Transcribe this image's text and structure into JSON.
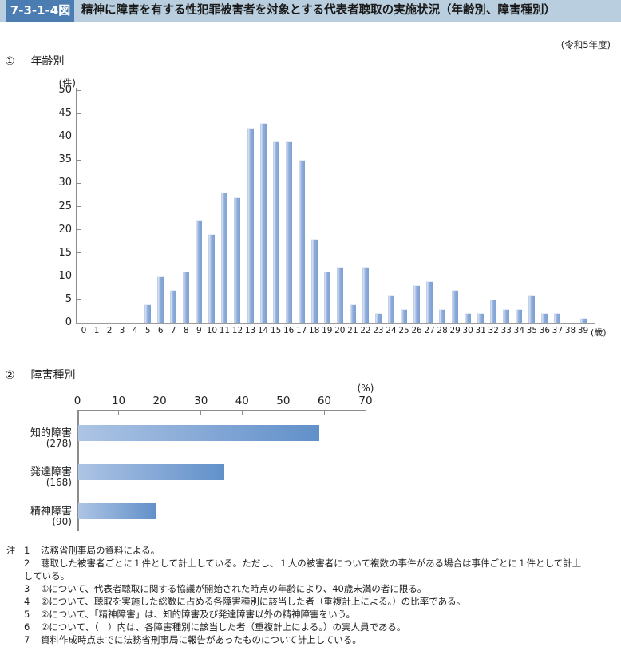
{
  "header": {
    "figure_no": "7-3-1-4図",
    "title": "精神に障害を有する性犯罪被害者を対象とする代表者聴取の実施状況（年齢別、障害種別）",
    "fiscal_year": "(令和5年度)"
  },
  "chart_data": [
    {
      "type": "bar",
      "orientation": "vertical",
      "section": "①",
      "section_title": "年齢別",
      "ylabel": "(件)",
      "x_unit": "(歳)",
      "ylim": [
        0,
        50
      ],
      "ytick_step": 5,
      "grid": false,
      "categories": [
        0,
        1,
        2,
        3,
        4,
        5,
        6,
        7,
        8,
        9,
        10,
        11,
        12,
        13,
        14,
        15,
        16,
        17,
        18,
        19,
        20,
        21,
        22,
        23,
        24,
        25,
        26,
        27,
        28,
        29,
        30,
        31,
        32,
        33,
        34,
        35,
        36,
        37,
        38,
        39
      ],
      "values": [
        0,
        0,
        0,
        0,
        0,
        4,
        10,
        7,
        11,
        22,
        19,
        28,
        27,
        42,
        43,
        39,
        39,
        35,
        18,
        11,
        12,
        4,
        12,
        2,
        6,
        3,
        8,
        9,
        3,
        7,
        2,
        2,
        5,
        3,
        3,
        6,
        2,
        2,
        0,
        1
      ]
    },
    {
      "type": "bar",
      "orientation": "horizontal",
      "section": "②",
      "section_title": "障害種別",
      "xlabel": "(%)",
      "xlim": [
        0,
        70
      ],
      "xtick_step": 10,
      "grid": false,
      "rows": [
        {
          "label": "知的障害",
          "count": "(278)",
          "value": 58.6
        },
        {
          "label": "発達障害",
          "count": "(168)",
          "value": 35.4
        },
        {
          "label": "精神障害",
          "count": "(90)",
          "value": 19.0
        }
      ]
    }
  ],
  "notes": {
    "prefix": "注",
    "items": [
      {
        "num": "1",
        "text": "法務省刑事局の資料による。"
      },
      {
        "num": "2",
        "text": "聴取した被害者ごとに１件として計上している。ただし、１人の被害者について複数の事件がある場合は事件ごとに１件として計上\nしている。"
      },
      {
        "num": "3",
        "text": "①について、代表者聴取に関する協議が開始された時点の年齢により、40歳未満の者に限る。"
      },
      {
        "num": "4",
        "text": "②について、聴取を実施した総数に占める各障害種別に該当した者（重複計上による。）の比率である。"
      },
      {
        "num": "5",
        "text": "②について、「精神障害」は、知的障害及び発達障害以外の精神障害をいう。"
      },
      {
        "num": "6",
        "text": "②について、（　）内は、各障害種別に該当した者（重複計上による。）の実人員である。"
      },
      {
        "num": "7",
        "text": "資料作成時点までに法務省刑事局に報告があったものについて計上している。"
      }
    ]
  },
  "colors": {
    "band": "#b9cede",
    "badge": "#4b7db2",
    "vbar_light": "#d8e2f3",
    "vbar_main": "#8fadd9",
    "vbar_dark": "#7c9ed2",
    "hbar_left": "#adc4e5",
    "hbar_right": "#6190c9",
    "axis": "#8c8c8c"
  }
}
